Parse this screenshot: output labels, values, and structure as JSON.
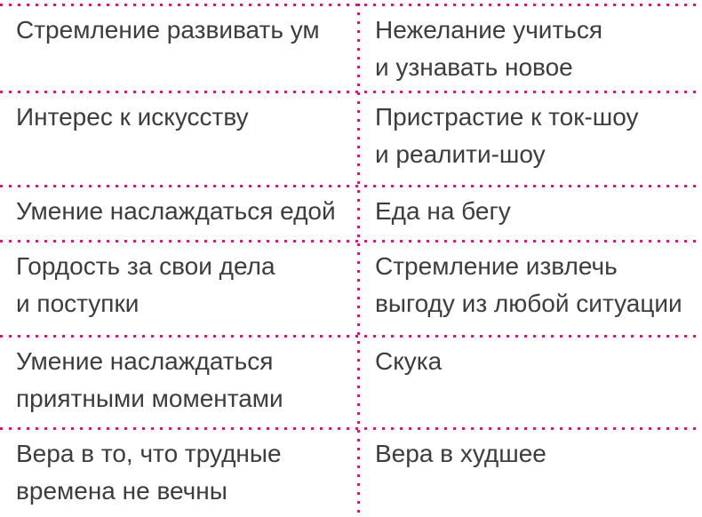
{
  "page": {
    "background_color": "#ffffff",
    "text_color": "#3d3d3d",
    "dotted_rule_color": "#c32278"
  },
  "table": {
    "rows": [
      {
        "left": "Стремление развивать ум",
        "right": "Нежелание учиться\nи узнавать новое"
      },
      {
        "left": "Интерес к искусству",
        "right": "Пристрастие к ток-шоу\nи реалити-шоу"
      },
      {
        "left": "Умение наслаждаться едой",
        "right": "Еда на бегу"
      },
      {
        "left": "Гордость за свои дела\nи поступки",
        "right": "Стремление извлечь\nвыгоду из любой ситуации"
      },
      {
        "left": "Умение наслаждаться\nприятными моментами",
        "right": "Скука"
      },
      {
        "left": "Вера в то, что трудные\nвремена не вечны",
        "right": "Вера в худшее"
      }
    ]
  }
}
